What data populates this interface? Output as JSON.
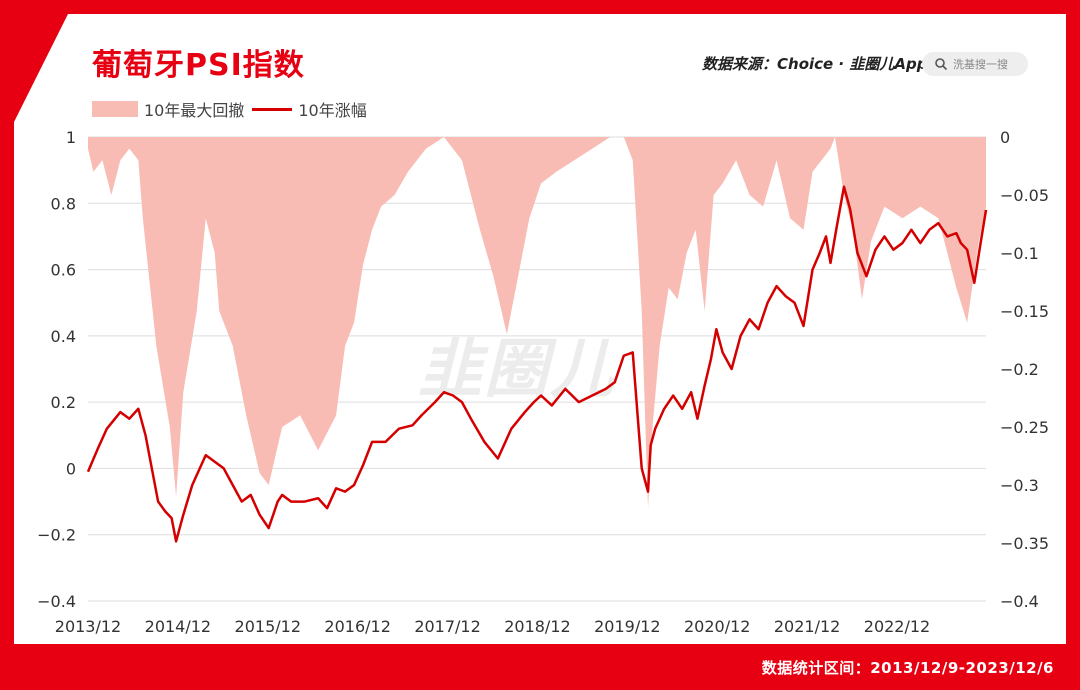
{
  "header": {
    "title": "葡萄牙PSI指数",
    "source": "数据来源：Choice · 韭圈儿App",
    "search_placeholder": "洗基搜一搜"
  },
  "watermark": "韭圈儿",
  "footer": {
    "note": "数据统计区间：2013/12/9-2023/12/6"
  },
  "colors": {
    "brand_red": "#e60012",
    "line": "#d40000",
    "drawdown_fill": "#f8bcb4"
  },
  "chart_data": {
    "type": "line",
    "legend": [
      "10年最大回撤",
      "10年涨幅"
    ],
    "legend_position": "top-left",
    "grid": true,
    "x_tick_labels": [
      "2013/12",
      "2014/12",
      "2015/12",
      "2016/12",
      "2017/12",
      "2018/12",
      "2019/12",
      "2020/12",
      "2021/12",
      "2022/12"
    ],
    "y_left": {
      "ylim": [
        -0.4,
        1.0
      ],
      "ticks": [
        "1",
        "0.8",
        "0.6",
        "0.4",
        "0.2",
        "0",
        "−0.2",
        "−0.4"
      ]
    },
    "y_right": {
      "ylim": [
        -0.4,
        0.0
      ],
      "ticks": [
        "0",
        "−0.05",
        "−0.1",
        "−0.15",
        "−0.2",
        "−0.25",
        "−0.3",
        "−0.35",
        "−0.4"
      ]
    },
    "series": [
      {
        "name": "10年涨幅",
        "axis": "left",
        "x": [
          2013.94,
          2014.05,
          2014.15,
          2014.3,
          2014.4,
          2014.5,
          2014.58,
          2014.65,
          2014.72,
          2014.8,
          2014.87,
          2014.92,
          2015.0,
          2015.1,
          2015.25,
          2015.35,
          2015.45,
          2015.55,
          2015.65,
          2015.75,
          2015.85,
          2015.95,
          2016.05,
          2016.1,
          2016.2,
          2016.35,
          2016.5,
          2016.6,
          2016.7,
          2016.8,
          2016.9,
          2017.0,
          2017.1,
          2017.25,
          2017.4,
          2017.55,
          2017.65,
          2017.8,
          2017.9,
          2018.0,
          2018.1,
          2018.2,
          2018.35,
          2018.5,
          2018.65,
          2018.8,
          2018.9,
          2018.98,
          2019.1,
          2019.25,
          2019.4,
          2019.55,
          2019.7,
          2019.8,
          2019.9,
          2020.0,
          2020.1,
          2020.17,
          2020.2,
          2020.25,
          2020.35,
          2020.45,
          2020.55,
          2020.65,
          2020.72,
          2020.8,
          2020.87,
          2020.93,
          2021.0,
          2021.1,
          2021.2,
          2021.3,
          2021.4,
          2021.5,
          2021.6,
          2021.7,
          2021.8,
          2021.9,
          2022.0,
          2022.08,
          2022.15,
          2022.2,
          2022.27,
          2022.35,
          2022.42,
          2022.5,
          2022.6,
          2022.7,
          2022.8,
          2022.9,
          2023.0,
          2023.1,
          2023.2,
          2023.3,
          2023.4,
          2023.5,
          2023.6,
          2023.65,
          2023.72,
          2023.8,
          2023.87,
          2023.93
        ],
        "values": [
          -0.01,
          0.06,
          0.12,
          0.17,
          0.15,
          0.18,
          0.1,
          0.0,
          -0.1,
          -0.13,
          -0.15,
          -0.22,
          -0.14,
          -0.05,
          0.04,
          0.02,
          0.0,
          -0.05,
          -0.1,
          -0.08,
          -0.14,
          -0.18,
          -0.1,
          -0.08,
          -0.1,
          -0.1,
          -0.09,
          -0.12,
          -0.06,
          -0.07,
          -0.05,
          0.01,
          0.08,
          0.08,
          0.12,
          0.13,
          0.16,
          0.2,
          0.23,
          0.22,
          0.2,
          0.15,
          0.08,
          0.03,
          0.12,
          0.17,
          0.2,
          0.22,
          0.19,
          0.24,
          0.2,
          0.22,
          0.24,
          0.26,
          0.34,
          0.35,
          0.0,
          -0.07,
          0.07,
          0.12,
          0.18,
          0.22,
          0.18,
          0.23,
          0.15,
          0.25,
          0.33,
          0.42,
          0.35,
          0.3,
          0.4,
          0.45,
          0.42,
          0.5,
          0.55,
          0.52,
          0.5,
          0.43,
          0.6,
          0.65,
          0.7,
          0.62,
          0.73,
          0.85,
          0.78,
          0.65,
          0.58,
          0.66,
          0.7,
          0.66,
          0.68,
          0.72,
          0.68,
          0.72,
          0.74,
          0.7,
          0.71,
          0.68,
          0.66,
          0.56,
          0.68,
          0.78
        ]
      },
      {
        "name": "10年最大回撤",
        "axis": "right",
        "x": [
          2013.94,
          2014.0,
          2014.1,
          2014.2,
          2014.3,
          2014.4,
          2014.5,
          2014.55,
          2014.7,
          2014.85,
          2014.92,
          2015.0,
          2015.15,
          2015.25,
          2015.35,
          2015.4,
          2015.55,
          2015.7,
          2015.85,
          2015.95,
          2016.1,
          2016.3,
          2016.5,
          2016.7,
          2016.8,
          2016.9,
          2017.0,
          2017.1,
          2017.2,
          2017.35,
          2017.5,
          2017.7,
          2017.9,
          2018.0,
          2018.1,
          2018.2,
          2018.3,
          2018.45,
          2018.6,
          2018.7,
          2018.85,
          2018.98,
          2019.15,
          2019.35,
          2019.55,
          2019.75,
          2019.9,
          2020.0,
          2020.1,
          2020.17,
          2020.22,
          2020.3,
          2020.4,
          2020.5,
          2020.6,
          2020.7,
          2020.8,
          2020.9,
          2021.0,
          2021.15,
          2021.3,
          2021.45,
          2021.6,
          2021.75,
          2021.9,
          2022.0,
          2022.1,
          2022.2,
          2022.25,
          2022.35,
          2022.45,
          2022.55,
          2022.65,
          2022.8,
          2023.0,
          2023.2,
          2023.4,
          2023.5,
          2023.6,
          2023.72,
          2023.85,
          2023.93
        ],
        "values": [
          -0.01,
          -0.03,
          -0.02,
          -0.05,
          -0.02,
          -0.01,
          -0.02,
          -0.07,
          -0.18,
          -0.25,
          -0.31,
          -0.22,
          -0.15,
          -0.07,
          -0.1,
          -0.15,
          -0.18,
          -0.24,
          -0.29,
          -0.3,
          -0.25,
          -0.24,
          -0.27,
          -0.24,
          -0.18,
          -0.16,
          -0.11,
          -0.08,
          -0.06,
          -0.05,
          -0.03,
          -0.01,
          0.0,
          -0.01,
          -0.02,
          -0.05,
          -0.08,
          -0.12,
          -0.17,
          -0.13,
          -0.07,
          -0.04,
          -0.03,
          -0.02,
          -0.01,
          0.0,
          0.0,
          -0.02,
          -0.15,
          -0.32,
          -0.25,
          -0.18,
          -0.13,
          -0.14,
          -0.1,
          -0.08,
          -0.15,
          -0.05,
          -0.04,
          -0.02,
          -0.05,
          -0.06,
          -0.02,
          -0.07,
          -0.08,
          -0.03,
          -0.02,
          -0.01,
          0.0,
          -0.05,
          -0.08,
          -0.14,
          -0.09,
          -0.06,
          -0.07,
          -0.06,
          -0.07,
          -0.1,
          -0.13,
          -0.16,
          -0.09,
          -0.06
        ]
      }
    ]
  }
}
